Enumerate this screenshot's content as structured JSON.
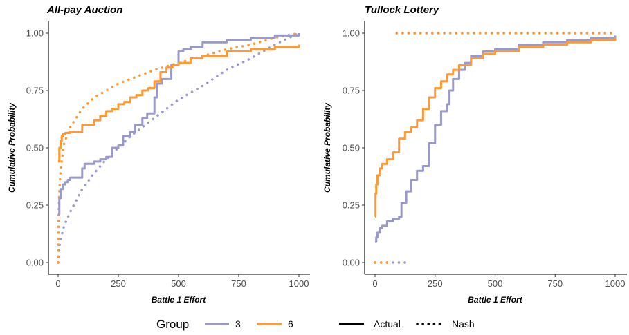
{
  "chart_data": [
    {
      "type": "line",
      "title": "All-pay Auction",
      "xlabel": "Battle 1 Effort",
      "ylabel": "Cumulative Probability",
      "xlim": [
        0,
        1000
      ],
      "ylim": [
        0,
        1
      ],
      "x_ticks": [
        "0",
        "250",
        "500",
        "750",
        "1000"
      ],
      "y_ticks": [
        "0.00",
        "0.25",
        "0.50",
        "0.75",
        "1.00"
      ],
      "grid": false,
      "series": [
        {
          "name": "3",
          "line": "Actual",
          "color": "#9999cc",
          "step": true,
          "x": [
            0,
            5,
            10,
            20,
            30,
            40,
            50,
            75,
            100,
            110,
            150,
            175,
            200,
            225,
            250,
            270,
            300,
            320,
            350,
            370,
            400,
            410,
            430,
            470,
            500,
            520,
            550,
            600,
            700,
            800,
            900,
            1000
          ],
          "y": [
            0.21,
            0.28,
            0.32,
            0.34,
            0.35,
            0.36,
            0.37,
            0.37,
            0.41,
            0.43,
            0.44,
            0.45,
            0.46,
            0.5,
            0.51,
            0.55,
            0.57,
            0.6,
            0.63,
            0.65,
            0.72,
            0.78,
            0.8,
            0.86,
            0.92,
            0.93,
            0.94,
            0.96,
            0.97,
            0.98,
            0.99,
            1.0
          ]
        },
        {
          "name": "6",
          "line": "Actual",
          "color": "#ff9933",
          "step": true,
          "x": [
            0,
            5,
            10,
            15,
            20,
            30,
            50,
            100,
            150,
            175,
            200,
            225,
            250,
            275,
            300,
            325,
            350,
            375,
            400,
            425,
            450,
            475,
            500,
            550,
            600,
            700,
            800,
            900,
            1000
          ],
          "y": [
            0.44,
            0.5,
            0.53,
            0.55,
            0.56,
            0.565,
            0.57,
            0.6,
            0.62,
            0.64,
            0.66,
            0.67,
            0.69,
            0.7,
            0.72,
            0.73,
            0.75,
            0.76,
            0.79,
            0.83,
            0.85,
            0.86,
            0.87,
            0.89,
            0.9,
            0.92,
            0.93,
            0.94,
            0.95
          ]
        },
        {
          "name": "3",
          "line": "Nash",
          "color": "#9999cc",
          "x": [
            0,
            5,
            10,
            25,
            50,
            100,
            150,
            200,
            250,
            300,
            400,
            500,
            600,
            700,
            800,
            900,
            1000
          ],
          "y": [
            0.0,
            0.07,
            0.1,
            0.16,
            0.22,
            0.32,
            0.39,
            0.45,
            0.5,
            0.55,
            0.63,
            0.71,
            0.77,
            0.84,
            0.89,
            0.95,
            1.0
          ]
        },
        {
          "name": "6",
          "line": "Nash",
          "color": "#ff9933",
          "x": [
            0,
            2,
            5,
            10,
            25,
            50,
            100,
            150,
            200,
            250,
            300,
            400,
            500,
            600,
            700,
            800,
            900,
            1000
          ],
          "y": [
            0.0,
            0.2,
            0.31,
            0.4,
            0.52,
            0.59,
            0.67,
            0.72,
            0.75,
            0.78,
            0.8,
            0.84,
            0.87,
            0.9,
            0.93,
            0.95,
            0.98,
            1.0
          ]
        }
      ]
    },
    {
      "type": "line",
      "title": "Tullock Lottery",
      "xlabel": "Battle 1 Effort",
      "ylabel": "Cumulative Probability",
      "xlim": [
        0,
        1000
      ],
      "ylim": [
        0,
        1
      ],
      "x_ticks": [
        "0",
        "250",
        "500",
        "750",
        "1000"
      ],
      "y_ticks": [
        "0.00",
        "0.25",
        "0.50",
        "0.75",
        "1.00"
      ],
      "grid": false,
      "series": [
        {
          "name": "3",
          "line": "Actual",
          "color": "#9999cc",
          "step": true,
          "x": [
            0,
            5,
            10,
            20,
            30,
            50,
            75,
            100,
            110,
            130,
            150,
            175,
            200,
            225,
            250,
            275,
            300,
            310,
            325,
            350,
            375,
            400,
            450,
            500,
            600,
            700,
            800,
            900,
            1000
          ],
          "y": [
            0.09,
            0.11,
            0.13,
            0.15,
            0.16,
            0.18,
            0.19,
            0.2,
            0.26,
            0.31,
            0.36,
            0.4,
            0.42,
            0.52,
            0.6,
            0.66,
            0.69,
            0.75,
            0.8,
            0.84,
            0.87,
            0.9,
            0.92,
            0.93,
            0.95,
            0.96,
            0.97,
            0.98,
            0.99
          ]
        },
        {
          "name": "6",
          "line": "Actual",
          "color": "#ff9933",
          "step": true,
          "x": [
            0,
            2,
            5,
            10,
            20,
            30,
            50,
            75,
            100,
            125,
            150,
            175,
            200,
            225,
            250,
            275,
            300,
            325,
            350,
            400,
            450,
            500,
            600,
            700,
            800,
            900,
            1000
          ],
          "y": [
            0.2,
            0.3,
            0.34,
            0.38,
            0.41,
            0.43,
            0.45,
            0.48,
            0.54,
            0.57,
            0.59,
            0.62,
            0.67,
            0.72,
            0.76,
            0.79,
            0.82,
            0.84,
            0.86,
            0.89,
            0.91,
            0.92,
            0.94,
            0.95,
            0.96,
            0.97,
            0.98
          ]
        },
        {
          "name": "3",
          "line": "Nash",
          "color": "#9999cc",
          "segments": [
            {
              "x": [
                90,
                1000
              ],
              "y": [
                1.0,
                1.0
              ]
            },
            {
              "x": [
                0,
                140
              ],
              "y": [
                0.0,
                0.0
              ]
            }
          ]
        },
        {
          "name": "6",
          "line": "Nash",
          "color": "#ff9933",
          "segments": [
            {
              "x": [
                90,
                1000
              ],
              "y": [
                1.0,
                1.0
              ]
            },
            {
              "x": [
                0,
                60
              ],
              "y": [
                0.0,
                0.0
              ]
            }
          ]
        }
      ]
    }
  ],
  "legend": {
    "title": "Group",
    "groups": [
      {
        "label": "3",
        "color": "#9999cc"
      },
      {
        "label": "6",
        "color": "#ff9933"
      }
    ],
    "linetypes": [
      {
        "label": "Actual",
        "style": "solid"
      },
      {
        "label": "Nash",
        "style": "dotted"
      }
    ]
  }
}
